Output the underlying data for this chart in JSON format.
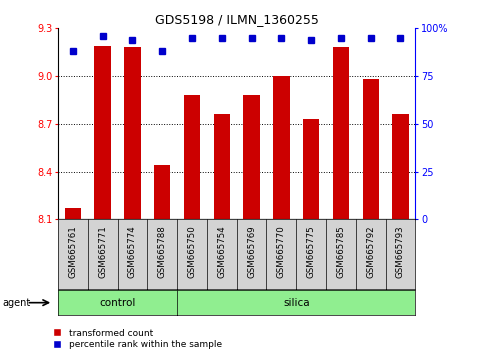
{
  "title": "GDS5198 / ILMN_1360255",
  "samples": [
    "GSM665761",
    "GSM665771",
    "GSM665774",
    "GSM665788",
    "GSM665750",
    "GSM665754",
    "GSM665769",
    "GSM665770",
    "GSM665775",
    "GSM665785",
    "GSM665792",
    "GSM665793"
  ],
  "groups": [
    "control",
    "control",
    "control",
    "control",
    "silica",
    "silica",
    "silica",
    "silica",
    "silica",
    "silica",
    "silica",
    "silica"
  ],
  "bar_values": [
    8.17,
    9.19,
    9.18,
    8.44,
    8.88,
    8.76,
    8.88,
    9.0,
    8.73,
    9.18,
    8.98,
    8.76
  ],
  "pct_right_vals": [
    88,
    96,
    94,
    88,
    95,
    95,
    95,
    95,
    94,
    95,
    95,
    95
  ],
  "ylim_left": [
    8.1,
    9.3
  ],
  "ylim_right": [
    0,
    100
  ],
  "yticks_left": [
    8.1,
    8.4,
    8.7,
    9.0,
    9.3
  ],
  "yticks_right": [
    0,
    25,
    50,
    75,
    100
  ],
  "bar_color": "#cc0000",
  "percentile_color": "#0000cc",
  "group_color": "#90ee90",
  "legend_red_label": "transformed count",
  "legend_blue_label": "percentile rank within the sample",
  "agent_label": "agent",
  "grid_lines": [
    9.0,
    8.7,
    8.4
  ],
  "title_fontsize": 9,
  "tick_fontsize": 7,
  "label_fontsize": 7
}
